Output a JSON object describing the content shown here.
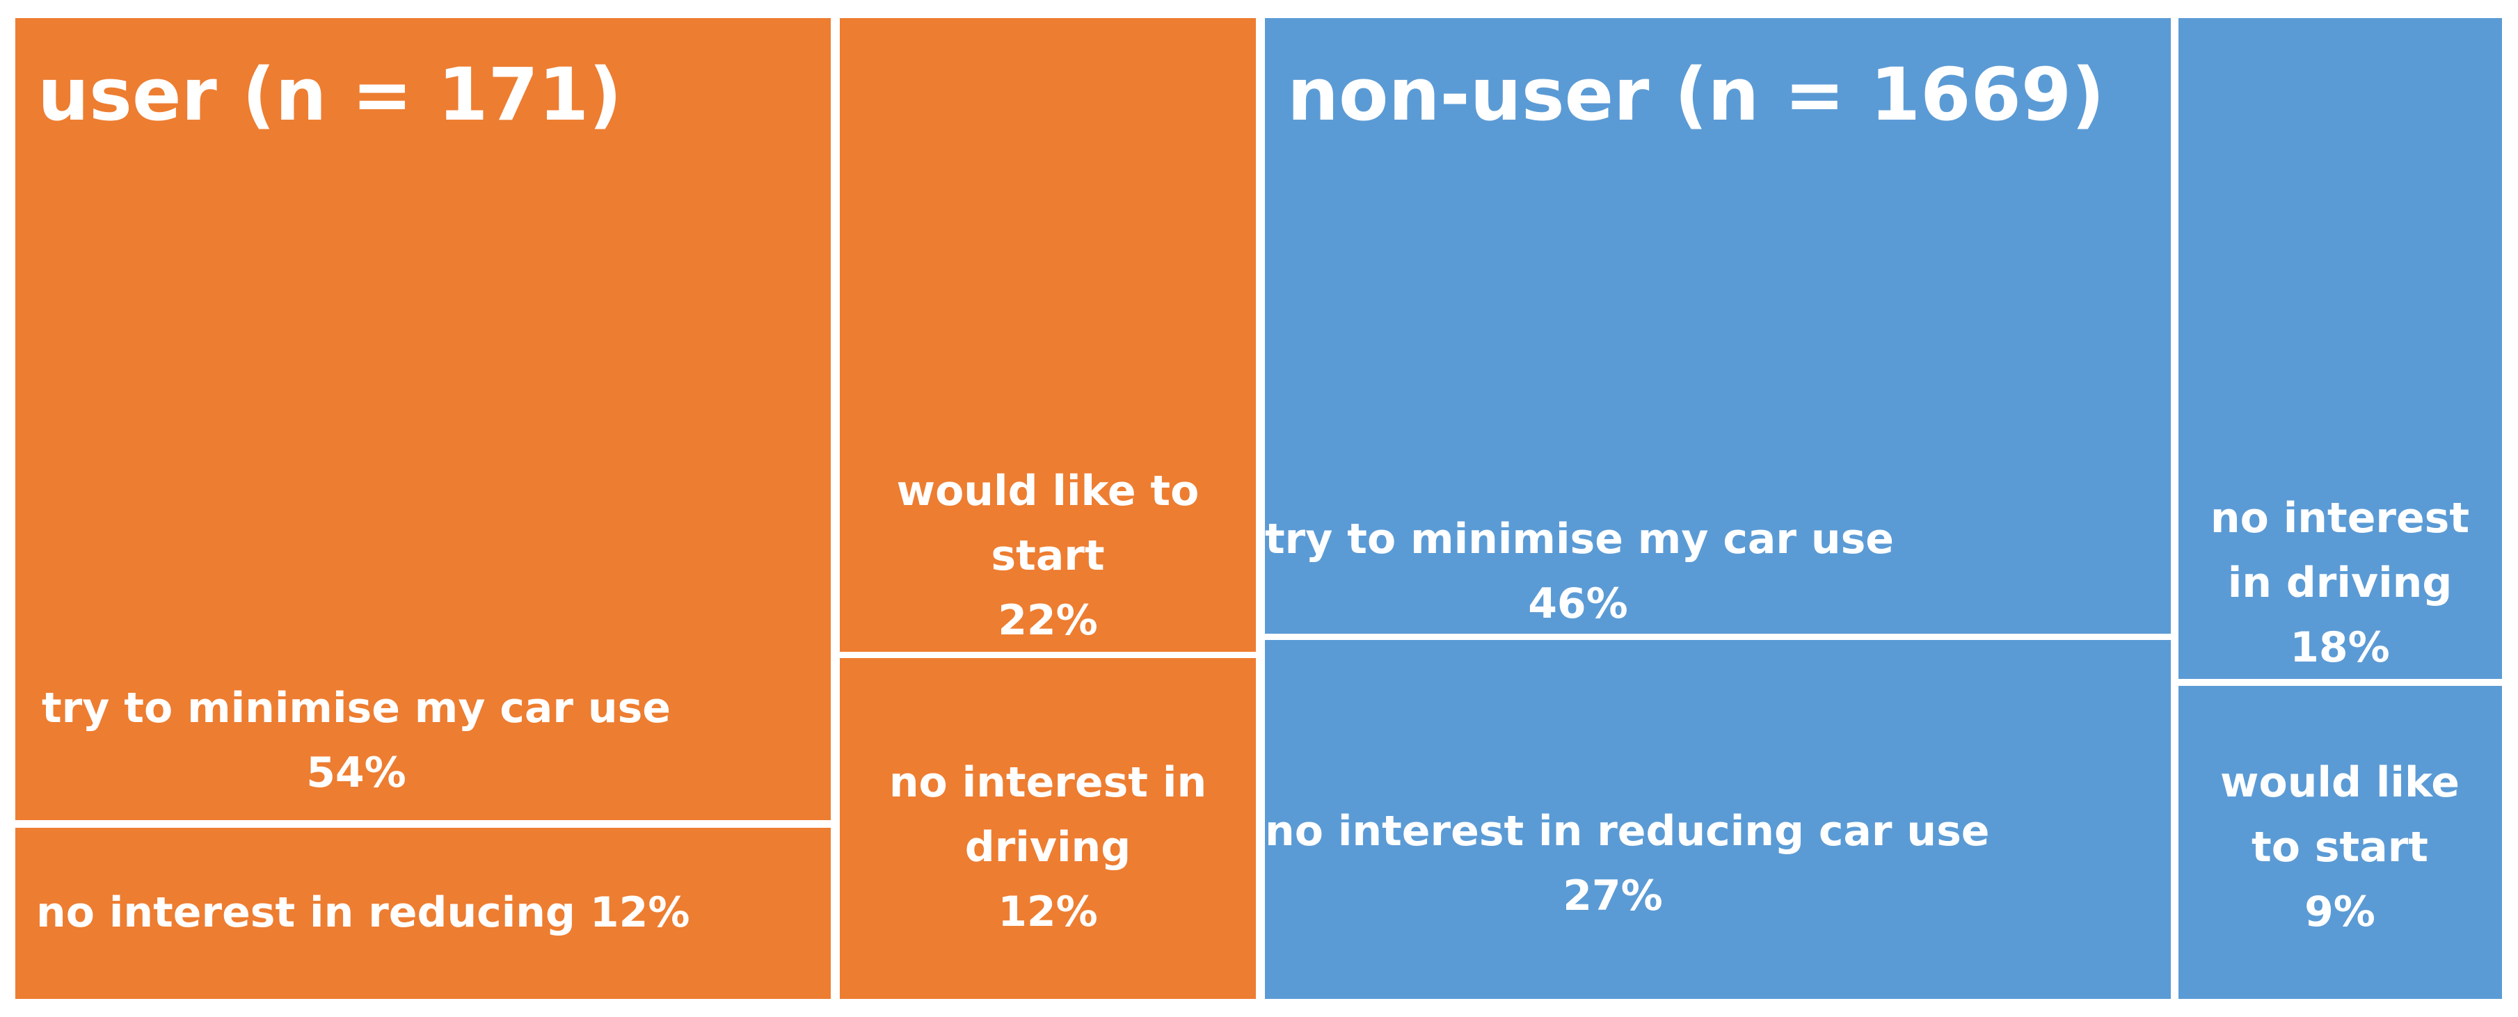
{
  "chart_data": {
    "type": "treemap",
    "colors": {
      "user": "#ED7D31",
      "non-user": "#5B9BD5"
    },
    "groups": [
      {
        "name": "user (n = 171)",
        "color": "#ED7D31",
        "items": [
          {
            "label": "try to minimise my car use",
            "value_label": "54%",
            "value": 54
          },
          {
            "label": "no interest in reducing",
            "value_label": "12%",
            "value": 12
          },
          {
            "label": "would like to start",
            "value_label": "22%",
            "value": 22
          },
          {
            "label": "no interest in driving",
            "value_label": "12%",
            "value": 12
          }
        ]
      },
      {
        "name": "non-user (n = 1669)",
        "color": "#5B9BD5",
        "items": [
          {
            "label": "try to minimise my car use",
            "value_label": "46%",
            "value": 46
          },
          {
            "label": "no interest in reducing car use",
            "value_label": "27%",
            "value": 27
          },
          {
            "label": "no interest in driving",
            "value_label": "18%",
            "value": 18
          },
          {
            "label": "would like to start",
            "value_label": "9%",
            "value": 9
          }
        ]
      }
    ]
  }
}
